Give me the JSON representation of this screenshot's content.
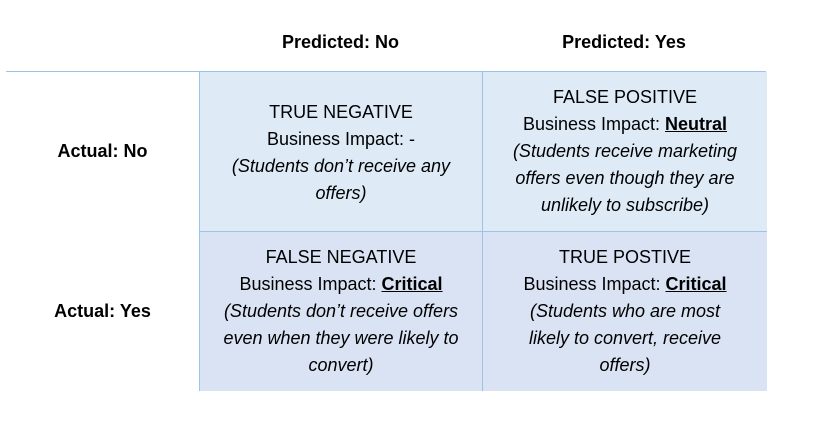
{
  "columns": {
    "no": "Predicted: No",
    "yes": "Predicted: Yes"
  },
  "rows": {
    "no": "Actual: No",
    "yes": "Actual: Yes"
  },
  "impact_label": "Business Impact: ",
  "cells": {
    "tn": {
      "title": "TRUE NEGATIVE",
      "impact": "-",
      "desc": "(Students don’t receive any offers)"
    },
    "fp": {
      "title": "FALSE POSITIVE",
      "impact": "Neutral",
      "desc": "(Students receive marketing offers even though they are unlikely to subscribe)"
    },
    "fn": {
      "title": "FALSE NEGATIVE",
      "impact": "Critical",
      "desc": "(Students don’t receive offers even when they were likely to convert)"
    },
    "tp": {
      "title": "TRUE POSTIVE",
      "impact": "Critical",
      "desc": "(Students who are most likely to convert, receive offers)"
    }
  },
  "colors": {
    "border": "#9dc3e6",
    "cell_light": "#deebf7",
    "cell_mid": "#dae3f3"
  }
}
